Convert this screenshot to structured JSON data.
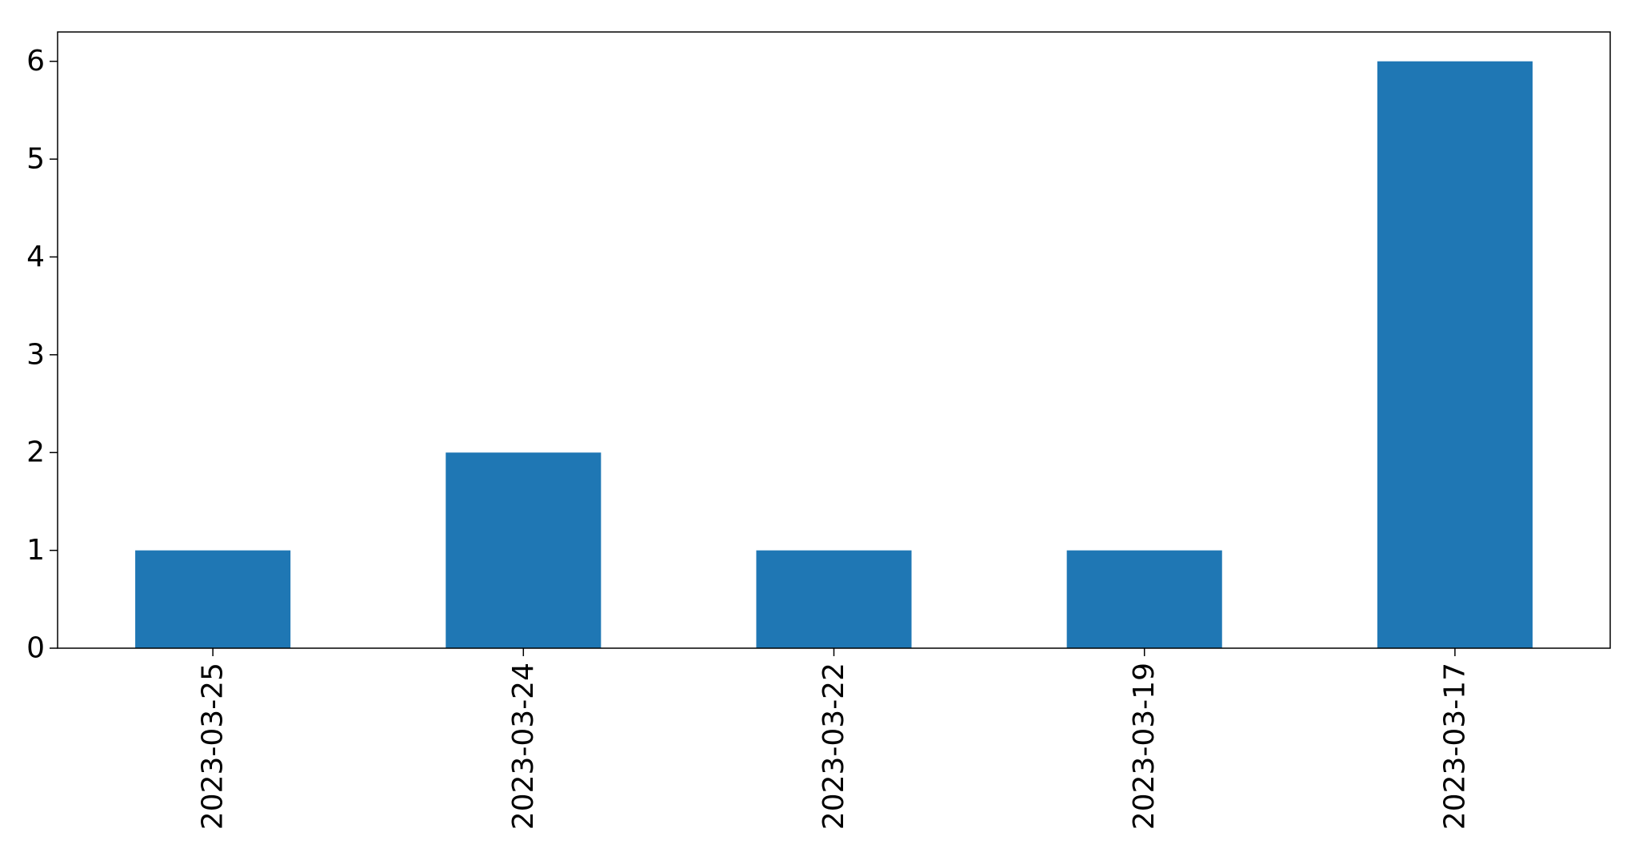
{
  "chart_data": {
    "type": "bar",
    "title": "",
    "xlabel": "",
    "ylabel": "",
    "categories": [
      "2023-03-25",
      "2023-03-24",
      "2023-03-22",
      "2023-03-19",
      "2023-03-17"
    ],
    "values": [
      1,
      2,
      1,
      1,
      6
    ],
    "ylim": [
      0,
      6.3
    ],
    "yticks": [
      0,
      1,
      2,
      3,
      4,
      5,
      6
    ],
    "legend": "none",
    "grid": false,
    "bar_color": "#1f77b4"
  }
}
